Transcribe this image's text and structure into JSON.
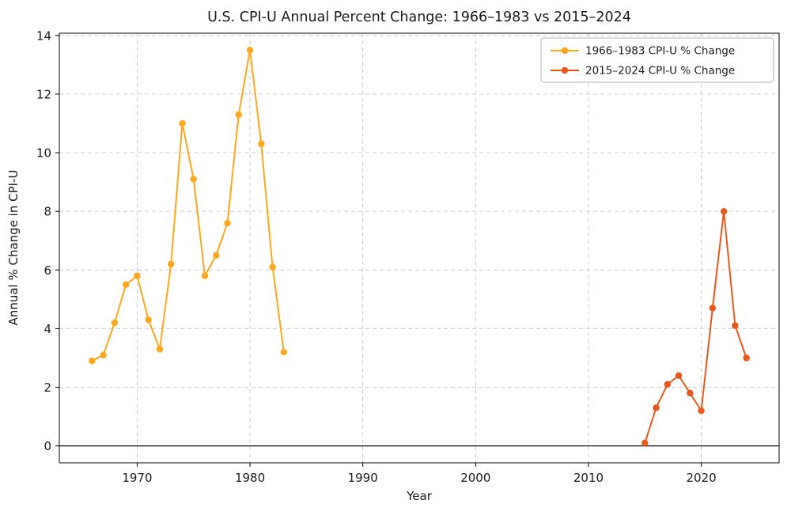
{
  "chart_data": {
    "type": "line",
    "title": "U.S. CPI-U Annual Percent Change: 1966–1983 vs 2015–2024",
    "xlabel": "Year",
    "ylabel": "Annual % Change in CPI-U",
    "xlim": [
      1963.1,
      2026.9
    ],
    "ylim": [
      -0.575,
      14.075
    ],
    "xticks": [
      1970,
      1980,
      1990,
      2000,
      2010,
      2020
    ],
    "yticks": [
      0,
      2,
      4,
      6,
      8,
      10,
      12,
      14
    ],
    "grid": true,
    "zero_line": true,
    "legend_position": "upper right",
    "series": [
      {
        "name": "1966–1983 CPI-U % Change",
        "color": "#FBA81C",
        "x": [
          1966,
          1967,
          1968,
          1969,
          1970,
          1971,
          1972,
          1973,
          1974,
          1975,
          1976,
          1977,
          1978,
          1979,
          1980,
          1981,
          1982,
          1983
        ],
        "values": [
          2.9,
          3.1,
          4.2,
          5.5,
          5.8,
          4.3,
          3.3,
          6.2,
          11.0,
          9.1,
          5.8,
          6.5,
          7.6,
          11.3,
          13.5,
          10.3,
          6.1,
          3.2
        ]
      },
      {
        "name": "2015–2024 CPI-U % Change",
        "color": "#E8581C",
        "x": [
          2015,
          2016,
          2017,
          2018,
          2019,
          2020,
          2021,
          2022,
          2023,
          2024
        ],
        "values": [
          0.1,
          1.3,
          2.1,
          2.4,
          1.8,
          1.2,
          4.7,
          8.0,
          4.1,
          3.0
        ]
      }
    ]
  }
}
